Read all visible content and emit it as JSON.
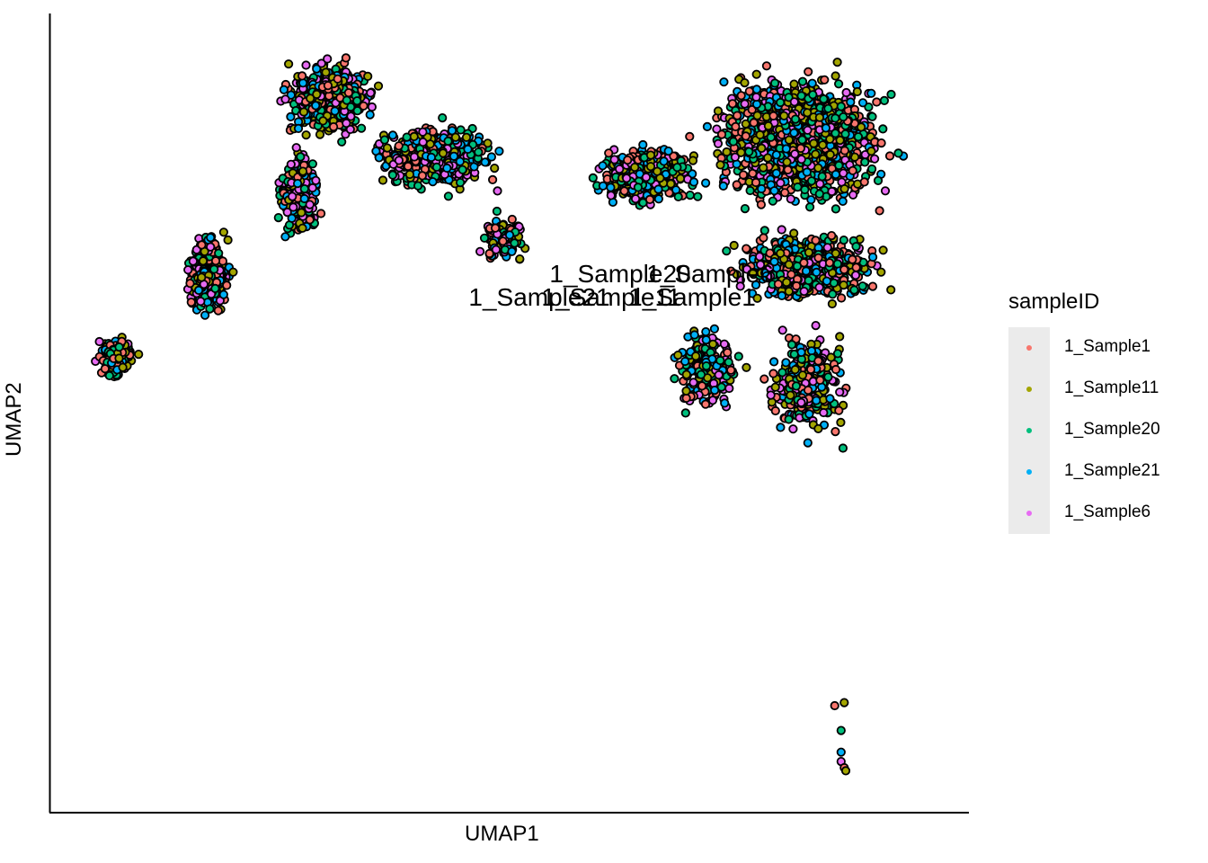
{
  "chart_data": {
    "type": "scatter",
    "title": "",
    "xlabel": "UMAP1",
    "ylabel": "UMAP2",
    "grid": false,
    "legend_position": "right",
    "legend_title": "sampleID",
    "series": [
      {
        "name": "1_Sample1",
        "color": "#F8766D"
      },
      {
        "name": "1_Sample11",
        "color": "#A3A500"
      },
      {
        "name": "1_Sample20",
        "color": "#00BF7D"
      },
      {
        "name": "1_Sample21",
        "color": "#00B0F6"
      },
      {
        "name": "1_Sample6",
        "color": "#E76BF3"
      }
    ],
    "centroid_labels": [
      "1_Sample20",
      "1_Sample6",
      "1_Sample21",
      "1_Sample11",
      "1_Sample1"
    ],
    "clusters": [
      {
        "x": [
          1.6,
          5.5
        ],
        "y": [
          13.0,
          16.4
        ],
        "n": 560
      },
      {
        "x": [
          1.6,
          3.6
        ],
        "y": [
          9.6,
          13.6
        ],
        "n": 220
      },
      {
        "x": [
          -1.3,
          0.8
        ],
        "y": [
          7.3,
          10.8
        ],
        "n": 460
      },
      {
        "x": [
          -4.1,
          -2.3
        ],
        "y": [
          5.4,
          7.2
        ],
        "n": 170
      },
      {
        "x": [
          4.2,
          9.8
        ],
        "y": [
          11.3,
          14.3
        ],
        "n": 520
      },
      {
        "x": [
          8.0,
          10.2
        ],
        "y": [
          9.0,
          11.3
        ],
        "n": 130
      },
      {
        "x": [
          11.2,
          16.0
        ],
        "y": [
          10.9,
          13.6
        ],
        "n": 420
      },
      {
        "x": [
          14.5,
          22.6
        ],
        "y": [
          10.2,
          16.4
        ],
        "n": 1250
      },
      {
        "x": [
          15.5,
          22.0
        ],
        "y": [
          7.7,
          10.8
        ],
        "n": 620
      },
      {
        "x": [
          13.9,
          17.2
        ],
        "y": [
          4.0,
          8.0
        ],
        "n": 180
      },
      {
        "x": [
          16.9,
          20.5
        ],
        "y": [
          3.0,
          8.0
        ],
        "n": 300
      }
    ],
    "outliers": {
      "x": [
        19.6,
        19.9,
        19.8,
        19.8,
        19.8,
        19.9,
        19.95
      ],
      "y": [
        -4.9,
        -4.8,
        -5.7,
        -6.4,
        -6.7,
        -6.9,
        -7.0
      ]
    }
  }
}
